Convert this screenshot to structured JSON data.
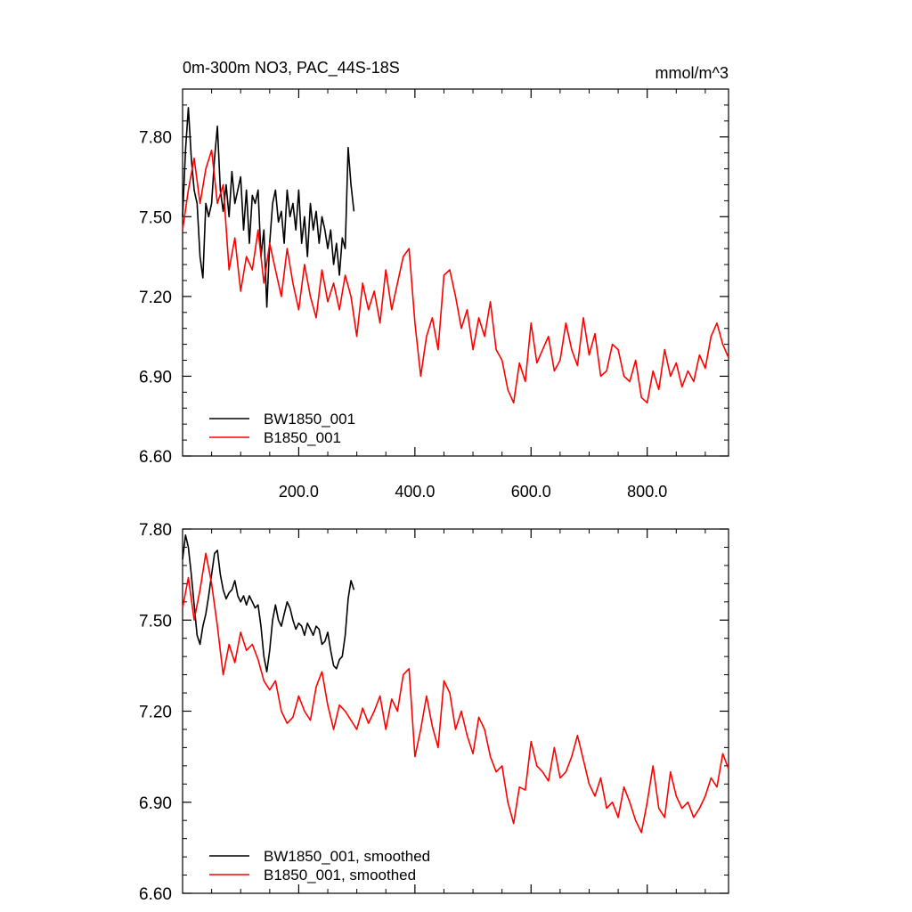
{
  "chart_data": [
    {
      "type": "line",
      "title": "0m-300m NO3, PAC_44S-18S",
      "units": "mmol/m^3",
      "xlim": [
        0,
        940
      ],
      "ylim": [
        6.6,
        7.98
      ],
      "x_ticks": [
        200,
        400,
        600,
        800
      ],
      "x_tick_labels": [
        "200.0",
        "400.0",
        "600.0",
        "800.0"
      ],
      "y_ticks": [
        6.6,
        6.9,
        7.2,
        7.5,
        7.8
      ],
      "y_tick_labels": [
        "6.60",
        "6.90",
        "7.20",
        "7.50",
        "7.80"
      ],
      "grid": false,
      "legend_position": "bottom-left",
      "series": [
        {
          "name": "BW1850_001",
          "color": "#000000",
          "x": [
            0,
            5,
            10,
            15,
            20,
            25,
            30,
            35,
            40,
            45,
            50,
            55,
            60,
            65,
            70,
            75,
            80,
            85,
            90,
            95,
            100,
            105,
            110,
            115,
            120,
            125,
            130,
            135,
            140,
            145,
            150,
            155,
            160,
            165,
            170,
            175,
            180,
            185,
            190,
            195,
            200,
            205,
            210,
            215,
            220,
            225,
            230,
            235,
            240,
            245,
            250,
            255,
            260,
            265,
            270,
            275,
            280,
            285,
            290,
            295
          ],
          "values": [
            7.5,
            7.75,
            7.91,
            7.72,
            7.6,
            7.55,
            7.35,
            7.27,
            7.55,
            7.5,
            7.55,
            7.72,
            7.84,
            7.6,
            7.52,
            7.62,
            7.5,
            7.67,
            7.55,
            7.6,
            7.65,
            7.45,
            7.6,
            7.4,
            7.58,
            7.55,
            7.6,
            7.35,
            7.45,
            7.16,
            7.4,
            7.55,
            7.6,
            7.48,
            7.52,
            7.4,
            7.6,
            7.5,
            7.55,
            7.45,
            7.6,
            7.4,
            7.5,
            7.35,
            7.55,
            7.45,
            7.52,
            7.4,
            7.5,
            7.45,
            7.38,
            7.45,
            7.32,
            7.4,
            7.28,
            7.42,
            7.38,
            7.76,
            7.62,
            7.52
          ]
        },
        {
          "name": "B1850_001",
          "color": "#ff0000",
          "x": [
            0,
            10,
            20,
            30,
            40,
            50,
            60,
            70,
            80,
            90,
            100,
            110,
            120,
            130,
            140,
            150,
            160,
            170,
            180,
            190,
            200,
            210,
            220,
            230,
            240,
            250,
            260,
            270,
            280,
            290,
            300,
            310,
            320,
            330,
            340,
            350,
            360,
            370,
            380,
            390,
            400,
            410,
            420,
            430,
            440,
            450,
            460,
            470,
            480,
            490,
            500,
            510,
            520,
            530,
            540,
            550,
            560,
            570,
            580,
            590,
            600,
            610,
            620,
            630,
            640,
            650,
            660,
            670,
            680,
            690,
            700,
            710,
            720,
            730,
            740,
            750,
            760,
            770,
            780,
            790,
            800,
            810,
            820,
            830,
            840,
            850,
            860,
            870,
            880,
            890,
            900,
            910,
            920,
            930,
            940
          ],
          "values": [
            7.45,
            7.6,
            7.72,
            7.55,
            7.68,
            7.75,
            7.55,
            7.62,
            7.3,
            7.42,
            7.22,
            7.35,
            7.3,
            7.45,
            7.25,
            7.4,
            7.3,
            7.2,
            7.38,
            7.25,
            7.15,
            7.32,
            7.2,
            7.12,
            7.3,
            7.18,
            7.25,
            7.15,
            7.28,
            7.2,
            7.05,
            7.25,
            7.15,
            7.22,
            7.1,
            7.3,
            7.15,
            7.25,
            7.35,
            7.38,
            7.1,
            6.9,
            7.05,
            7.12,
            7.0,
            7.28,
            7.3,
            7.2,
            7.08,
            7.15,
            7.0,
            7.12,
            7.05,
            7.18,
            7.0,
            6.96,
            6.85,
            6.8,
            6.95,
            6.88,
            7.1,
            6.95,
            7.0,
            7.05,
            6.92,
            6.96,
            7.1,
            7.0,
            6.94,
            7.12,
            6.98,
            7.06,
            6.9,
            6.92,
            7.02,
            7.0,
            6.9,
            6.88,
            6.96,
            6.82,
            6.8,
            6.92,
            6.85,
            7.0,
            6.9,
            6.95,
            6.86,
            6.92,
            6.88,
            6.98,
            6.93,
            7.05,
            7.1,
            7.02,
            6.97
          ]
        }
      ]
    },
    {
      "type": "line",
      "xlim": [
        0,
        940
      ],
      "ylim": [
        6.6,
        7.8
      ],
      "x_ticks": [
        200,
        400,
        600,
        800
      ],
      "y_ticks": [
        6.6,
        6.9,
        7.2,
        7.5,
        7.8
      ],
      "y_tick_labels": [
        "6.60",
        "6.90",
        "7.20",
        "7.50",
        "7.80"
      ],
      "grid": false,
      "legend_position": "bottom-left",
      "series": [
        {
          "name": "BW1850_001, smoothed",
          "color": "#000000",
          "x": [
            0,
            5,
            10,
            15,
            20,
            25,
            30,
            35,
            40,
            45,
            50,
            55,
            60,
            65,
            70,
            75,
            80,
            85,
            90,
            95,
            100,
            105,
            110,
            115,
            120,
            125,
            130,
            135,
            140,
            145,
            150,
            155,
            160,
            165,
            170,
            175,
            180,
            185,
            190,
            195,
            200,
            205,
            210,
            215,
            220,
            225,
            230,
            235,
            240,
            245,
            250,
            255,
            260,
            265,
            270,
            275,
            280,
            285,
            290,
            295
          ],
          "values": [
            7.7,
            7.78,
            7.74,
            7.65,
            7.55,
            7.45,
            7.42,
            7.48,
            7.52,
            7.58,
            7.65,
            7.72,
            7.73,
            7.65,
            7.6,
            7.57,
            7.59,
            7.6,
            7.63,
            7.58,
            7.56,
            7.58,
            7.55,
            7.58,
            7.56,
            7.54,
            7.55,
            7.48,
            7.38,
            7.33,
            7.4,
            7.5,
            7.55,
            7.5,
            7.48,
            7.52,
            7.56,
            7.54,
            7.5,
            7.47,
            7.49,
            7.48,
            7.45,
            7.49,
            7.47,
            7.45,
            7.48,
            7.47,
            7.42,
            7.43,
            7.46,
            7.4,
            7.35,
            7.34,
            7.37,
            7.38,
            7.45,
            7.57,
            7.63,
            7.6
          ]
        },
        {
          "name": "B1850_001, smoothed",
          "color": "#ff0000",
          "x": [
            0,
            10,
            20,
            30,
            40,
            50,
            60,
            70,
            80,
            90,
            100,
            110,
            120,
            130,
            140,
            150,
            160,
            170,
            180,
            190,
            200,
            210,
            220,
            230,
            240,
            250,
            260,
            270,
            280,
            290,
            300,
            310,
            320,
            330,
            340,
            350,
            360,
            370,
            380,
            390,
            400,
            410,
            420,
            430,
            440,
            450,
            460,
            470,
            480,
            490,
            500,
            510,
            520,
            530,
            540,
            550,
            560,
            570,
            580,
            590,
            600,
            610,
            620,
            630,
            640,
            650,
            660,
            670,
            680,
            690,
            700,
            710,
            720,
            730,
            740,
            750,
            760,
            770,
            780,
            790,
            800,
            810,
            820,
            830,
            840,
            850,
            860,
            870,
            880,
            890,
            900,
            910,
            920,
            930,
            940
          ],
          "values": [
            7.54,
            7.64,
            7.5,
            7.6,
            7.72,
            7.62,
            7.48,
            7.32,
            7.42,
            7.36,
            7.46,
            7.4,
            7.42,
            7.37,
            7.3,
            7.27,
            7.3,
            7.2,
            7.16,
            7.18,
            7.25,
            7.2,
            7.17,
            7.28,
            7.33,
            7.22,
            7.14,
            7.22,
            7.2,
            7.17,
            7.14,
            7.21,
            7.16,
            7.2,
            7.25,
            7.14,
            7.24,
            7.2,
            7.32,
            7.34,
            7.05,
            7.14,
            7.25,
            7.15,
            7.08,
            7.3,
            7.26,
            7.14,
            7.2,
            7.12,
            7.06,
            7.18,
            7.14,
            7.05,
            7.0,
            7.02,
            6.9,
            6.83,
            6.95,
            6.94,
            7.1,
            7.02,
            7.0,
            6.97,
            7.08,
            6.98,
            7.0,
            7.05,
            7.12,
            7.04,
            6.96,
            6.92,
            6.98,
            6.88,
            6.9,
            6.85,
            6.95,
            6.9,
            6.84,
            6.8,
            6.9,
            7.02,
            6.88,
            6.85,
            7.0,
            6.92,
            6.88,
            6.9,
            6.85,
            6.88,
            6.92,
            6.98,
            6.95,
            7.06,
            7.01
          ]
        }
      ]
    }
  ]
}
